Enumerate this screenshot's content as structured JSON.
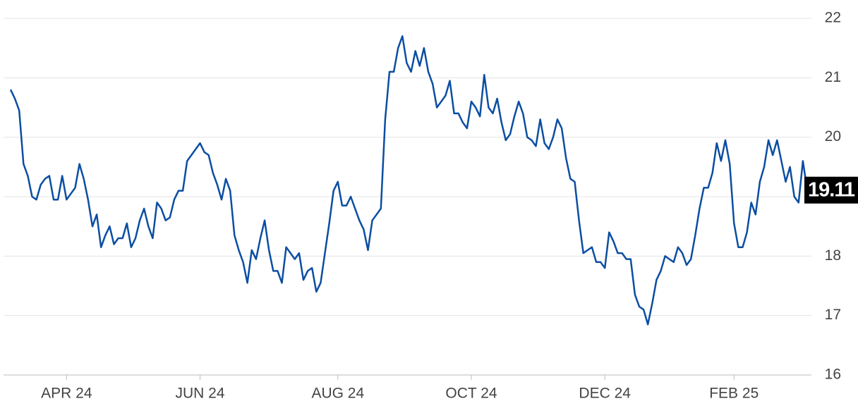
{
  "chart_data": {
    "type": "line",
    "values": [
      20.8,
      20.65,
      20.45,
      19.55,
      19.35,
      19.0,
      18.95,
      19.2,
      19.3,
      19.35,
      18.95,
      18.95,
      19.35,
      18.95,
      19.05,
      19.15,
      19.55,
      19.3,
      18.95,
      18.5,
      18.7,
      18.15,
      18.35,
      18.5,
      18.2,
      18.3,
      18.3,
      18.55,
      18.15,
      18.3,
      18.6,
      18.8,
      18.5,
      18.3,
      18.9,
      18.8,
      18.6,
      18.65,
      18.95,
      19.1,
      19.1,
      19.6,
      19.7,
      19.8,
      19.9,
      19.75,
      19.7,
      19.4,
      19.2,
      18.95,
      19.3,
      19.1,
      18.35,
      18.1,
      17.9,
      17.55,
      18.1,
      17.95,
      18.3,
      18.6,
      18.1,
      17.75,
      17.75,
      17.55,
      18.15,
      18.05,
      17.95,
      18.05,
      17.6,
      17.75,
      17.8,
      17.4,
      17.55,
      18.05,
      18.55,
      19.1,
      19.25,
      18.85,
      18.85,
      19.0,
      18.8,
      18.6,
      18.45,
      18.1,
      18.6,
      18.7,
      18.8,
      20.3,
      21.1,
      21.1,
      21.5,
      21.7,
      21.25,
      21.1,
      21.45,
      21.2,
      21.5,
      21.1,
      20.9,
      20.5,
      20.6,
      20.7,
      20.95,
      20.4,
      20.4,
      20.25,
      20.15,
      20.6,
      20.5,
      20.35,
      21.05,
      20.5,
      20.4,
      20.65,
      20.25,
      19.95,
      20.05,
      20.35,
      20.6,
      20.4,
      20.0,
      19.95,
      19.85,
      20.3,
      19.9,
      19.8,
      20.0,
      20.3,
      20.15,
      19.65,
      19.3,
      19.25,
      18.6,
      18.05,
      18.1,
      18.15,
      17.9,
      17.9,
      17.8,
      18.4,
      18.25,
      18.05,
      18.05,
      17.95,
      17.95,
      17.35,
      17.15,
      17.1,
      16.85,
      17.2,
      17.6,
      17.75,
      18.0,
      17.95,
      17.9,
      18.15,
      18.05,
      17.85,
      17.95,
      18.35,
      18.8,
      19.15,
      19.15,
      19.4,
      19.9,
      19.6,
      19.95,
      19.55,
      18.55,
      18.15,
      18.15,
      18.4,
      18.9,
      18.7,
      19.25,
      19.5,
      19.95,
      19.7,
      19.95,
      19.6,
      19.25,
      19.5,
      19.0,
      18.9,
      19.6,
      19.11
    ],
    "color": "#0b4ea2",
    "xlim": [
      0,
      185
    ],
    "xticks": [
      {
        "value": 13,
        "label": "APR 24"
      },
      {
        "value": 44,
        "label": "JUN 24"
      },
      {
        "value": 76,
        "label": "AUG 24"
      },
      {
        "value": 107,
        "label": "OCT 24"
      },
      {
        "value": 138,
        "label": "DEC 24"
      },
      {
        "value": 168,
        "label": "FEB 25"
      }
    ],
    "ylim": [
      16,
      22
    ],
    "yticks": [
      16,
      17,
      18,
      19,
      20,
      21,
      22
    ],
    "grid": true
  }
}
